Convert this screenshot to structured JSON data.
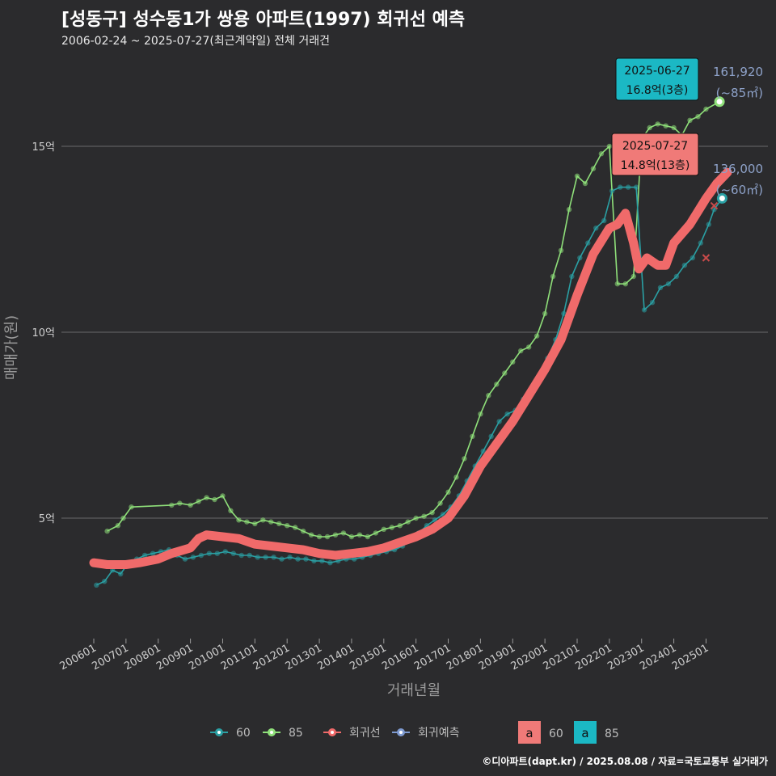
{
  "chart_data": {
    "type": "scatter",
    "title": "[성동구] 성수동1가 쌍용 아파트(1997) 회귀선 예측",
    "subtitle": "2006-02-24 ~ 2025-07-27(최근계약일) 전체 거래건",
    "xlabel": "거래년월",
    "ylabel": "매매가(원)",
    "x_range": [
      "2006-01",
      "2025-12"
    ],
    "ylim": [
      2,
      17
    ],
    "y_ticks": [
      {
        "value": 5,
        "label": "5억"
      },
      {
        "value": 10,
        "label": "10억"
      },
      {
        "value": 15,
        "label": "15억"
      }
    ],
    "x_ticks": [
      "200601",
      "200701",
      "200801",
      "200901",
      "201001",
      "201101",
      "201201",
      "201301",
      "201401",
      "201501",
      "201601",
      "201701",
      "201801",
      "201901",
      "202001",
      "202101",
      "202201",
      "202301",
      "202401",
      "202501"
    ],
    "grid": true,
    "colors": {
      "s60": "#2aa0a4",
      "s85": "#8fe07a",
      "regression": "#f06a6a",
      "forecast": "#7e9ad0"
    },
    "series": [
      {
        "name": "85",
        "points": [
          [
            "2006-06",
            4.65
          ],
          [
            "2006-10",
            4.8
          ],
          [
            "2006-12",
            5.0
          ],
          [
            "2007-03",
            5.3
          ],
          [
            "2008-06",
            5.35
          ],
          [
            "2008-09",
            5.4
          ],
          [
            "2009-01",
            5.35
          ],
          [
            "2009-04",
            5.45
          ],
          [
            "2009-07",
            5.55
          ],
          [
            "2009-10",
            5.5
          ],
          [
            "2010-01",
            5.6
          ],
          [
            "2010-04",
            5.2
          ],
          [
            "2010-07",
            4.95
          ],
          [
            "2010-10",
            4.9
          ],
          [
            "2011-01",
            4.85
          ],
          [
            "2011-04",
            4.95
          ],
          [
            "2011-07",
            4.9
          ],
          [
            "2011-10",
            4.85
          ],
          [
            "2012-01",
            4.8
          ],
          [
            "2012-04",
            4.75
          ],
          [
            "2012-07",
            4.65
          ],
          [
            "2012-10",
            4.55
          ],
          [
            "2013-01",
            4.5
          ],
          [
            "2013-04",
            4.5
          ],
          [
            "2013-07",
            4.55
          ],
          [
            "2013-10",
            4.6
          ],
          [
            "2014-01",
            4.5
          ],
          [
            "2014-04",
            4.55
          ],
          [
            "2014-07",
            4.5
          ],
          [
            "2014-10",
            4.6
          ],
          [
            "2015-01",
            4.7
          ],
          [
            "2015-04",
            4.75
          ],
          [
            "2015-07",
            4.8
          ],
          [
            "2015-10",
            4.9
          ],
          [
            "2016-01",
            5.0
          ],
          [
            "2016-04",
            5.05
          ],
          [
            "2016-07",
            5.15
          ],
          [
            "2016-10",
            5.4
          ],
          [
            "2017-01",
            5.7
          ],
          [
            "2017-04",
            6.1
          ],
          [
            "2017-07",
            6.6
          ],
          [
            "2017-10",
            7.2
          ],
          [
            "2018-01",
            7.8
          ],
          [
            "2018-04",
            8.3
          ],
          [
            "2018-07",
            8.6
          ],
          [
            "2018-10",
            8.9
          ],
          [
            "2019-01",
            9.2
          ],
          [
            "2019-04",
            9.5
          ],
          [
            "2019-07",
            9.6
          ],
          [
            "2019-10",
            9.9
          ],
          [
            "2020-01",
            10.5
          ],
          [
            "2020-04",
            11.5
          ],
          [
            "2020-07",
            12.2
          ],
          [
            "2020-10",
            13.3
          ],
          [
            "2021-01",
            14.2
          ],
          [
            "2021-04",
            14.0
          ],
          [
            "2021-07",
            14.4
          ],
          [
            "2021-10",
            14.8
          ],
          [
            "2022-01",
            15.0
          ],
          [
            "2022-04",
            11.3
          ],
          [
            "2022-07",
            11.3
          ],
          [
            "2022-10",
            11.5
          ],
          [
            "2023-01",
            15.2
          ],
          [
            "2023-04",
            15.5
          ],
          [
            "2023-07",
            15.6
          ],
          [
            "2023-10",
            15.55
          ],
          [
            "2024-01",
            15.5
          ],
          [
            "2024-04",
            15.3
          ],
          [
            "2024-07",
            15.7
          ],
          [
            "2024-10",
            15.8
          ],
          [
            "2025-01",
            16.0
          ],
          [
            "2025-06",
            16.2
          ]
        ]
      },
      {
        "name": "60",
        "points": [
          [
            "2006-02",
            3.2
          ],
          [
            "2006-05",
            3.3
          ],
          [
            "2006-08",
            3.6
          ],
          [
            "2006-11",
            3.5
          ],
          [
            "2007-02",
            3.8
          ],
          [
            "2007-05",
            3.9
          ],
          [
            "2007-08",
            4.0
          ],
          [
            "2007-11",
            4.05
          ],
          [
            "2008-02",
            4.1
          ],
          [
            "2008-05",
            4.15
          ],
          [
            "2008-08",
            4.0
          ],
          [
            "2008-11",
            3.9
          ],
          [
            "2009-02",
            3.95
          ],
          [
            "2009-05",
            4.0
          ],
          [
            "2009-08",
            4.05
          ],
          [
            "2009-11",
            4.05
          ],
          [
            "2010-02",
            4.1
          ],
          [
            "2010-05",
            4.05
          ],
          [
            "2010-08",
            4.0
          ],
          [
            "2010-11",
            4.0
          ],
          [
            "2011-02",
            3.95
          ],
          [
            "2011-05",
            3.95
          ],
          [
            "2011-08",
            3.95
          ],
          [
            "2011-11",
            3.9
          ],
          [
            "2012-02",
            3.95
          ],
          [
            "2012-05",
            3.9
          ],
          [
            "2012-08",
            3.9
          ],
          [
            "2012-11",
            3.85
          ],
          [
            "2013-02",
            3.85
          ],
          [
            "2013-05",
            3.8
          ],
          [
            "2013-08",
            3.85
          ],
          [
            "2013-11",
            3.9
          ],
          [
            "2014-02",
            3.9
          ],
          [
            "2014-05",
            3.95
          ],
          [
            "2014-08",
            4.0
          ],
          [
            "2014-11",
            4.05
          ],
          [
            "2015-02",
            4.1
          ],
          [
            "2015-05",
            4.15
          ],
          [
            "2015-08",
            4.25
          ],
          [
            "2015-11",
            4.4
          ],
          [
            "2016-02",
            4.6
          ],
          [
            "2016-05",
            4.8
          ],
          [
            "2016-08",
            4.95
          ],
          [
            "2016-11",
            5.1
          ],
          [
            "2017-02",
            5.3
          ],
          [
            "2017-05",
            5.6
          ],
          [
            "2017-08",
            6.0
          ],
          [
            "2017-11",
            6.4
          ],
          [
            "2018-02",
            6.8
          ],
          [
            "2018-05",
            7.2
          ],
          [
            "2018-08",
            7.6
          ],
          [
            "2018-11",
            7.8
          ],
          [
            "2019-02",
            7.9
          ],
          [
            "2019-05",
            8.2
          ],
          [
            "2019-08",
            8.5
          ],
          [
            "2019-11",
            8.8
          ],
          [
            "2020-02",
            9.3
          ],
          [
            "2020-05",
            9.8
          ],
          [
            "2020-08",
            10.5
          ],
          [
            "2020-11",
            11.5
          ],
          [
            "2021-02",
            12.0
          ],
          [
            "2021-05",
            12.4
          ],
          [
            "2021-08",
            12.8
          ],
          [
            "2021-11",
            13.0
          ],
          [
            "2022-02",
            13.8
          ],
          [
            "2022-05",
            13.9
          ],
          [
            "2022-08",
            13.9
          ],
          [
            "2022-11",
            13.9
          ],
          [
            "2023-02",
            10.6
          ],
          [
            "2023-05",
            10.8
          ],
          [
            "2023-08",
            11.2
          ],
          [
            "2023-11",
            11.3
          ],
          [
            "2024-02",
            11.5
          ],
          [
            "2024-05",
            11.8
          ],
          [
            "2024-08",
            12.0
          ],
          [
            "2024-11",
            12.4
          ],
          [
            "2025-02",
            12.9
          ],
          [
            "2025-04",
            13.3
          ],
          [
            "2025-07",
            13.6
          ]
        ]
      }
    ],
    "regression": [
      [
        "2006-01",
        3.8
      ],
      [
        "2006-06",
        3.75
      ],
      [
        "2007-01",
        3.75
      ],
      [
        "2007-06",
        3.8
      ],
      [
        "2008-01",
        3.9
      ],
      [
        "2008-06",
        4.05
      ],
      [
        "2009-01",
        4.2
      ],
      [
        "2009-04",
        4.45
      ],
      [
        "2009-07",
        4.55
      ],
      [
        "2010-01",
        4.5
      ],
      [
        "2010-07",
        4.45
      ],
      [
        "2011-01",
        4.3
      ],
      [
        "2011-07",
        4.25
      ],
      [
        "2012-01",
        4.2
      ],
      [
        "2012-07",
        4.15
      ],
      [
        "2013-01",
        4.05
      ],
      [
        "2013-07",
        4.0
      ],
      [
        "2014-01",
        4.05
      ],
      [
        "2014-07",
        4.1
      ],
      [
        "2015-01",
        4.2
      ],
      [
        "2015-07",
        4.35
      ],
      [
        "2016-01",
        4.5
      ],
      [
        "2016-07",
        4.7
      ],
      [
        "2017-01",
        5.0
      ],
      [
        "2017-07",
        5.6
      ],
      [
        "2018-01",
        6.4
      ],
      [
        "2018-07",
        7.0
      ],
      [
        "2019-01",
        7.6
      ],
      [
        "2019-07",
        8.3
      ],
      [
        "2020-01",
        9.0
      ],
      [
        "2020-07",
        9.8
      ],
      [
        "2021-01",
        11.0
      ],
      [
        "2021-07",
        12.1
      ],
      [
        "2022-01",
        12.8
      ],
      [
        "2022-04",
        12.9
      ],
      [
        "2022-07",
        13.2
      ],
      [
        "2022-10",
        12.4
      ],
      [
        "2022-12",
        11.7
      ],
      [
        "2023-03",
        12.0
      ],
      [
        "2023-07",
        11.8
      ],
      [
        "2023-10",
        11.8
      ],
      [
        "2024-01",
        12.4
      ],
      [
        "2024-07",
        12.9
      ],
      [
        "2025-01",
        13.6
      ],
      [
        "2025-05",
        14.0
      ],
      [
        "2025-09",
        14.3
      ]
    ],
    "forecast_markers": [
      {
        "x": "2025-04",
        "y": 13.4
      },
      {
        "x": "2025-01",
        "y": 12.0
      }
    ],
    "annotations": [
      {
        "date": "2025-06-27",
        "label": "16.8억(3층)",
        "style": "teal"
      },
      {
        "date": "2025-07-27",
        "label": "14.8억(13층)",
        "style": "coral"
      }
    ],
    "end_labels": [
      {
        "value": "161,920",
        "unit": "(~85㎡)"
      },
      {
        "value": "136,000",
        "unit": "(~60㎡)"
      }
    ],
    "legend": {
      "items": [
        "60",
        "85",
        "회귀선",
        "회귀예측"
      ],
      "key_items": [
        {
          "glyph": "a",
          "label": "60"
        },
        {
          "glyph": "a",
          "label": "85"
        }
      ]
    },
    "source": "©디아파트(dapt.kr) / 2025.08.08 / 자료=국토교통부 실거래가"
  }
}
